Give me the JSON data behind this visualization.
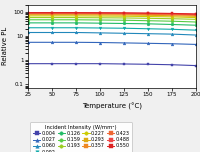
{
  "title": "",
  "xlabel": "Temperature (°C)",
  "ylabel": "Relative PL",
  "xlim": [
    25,
    200
  ],
  "ylim_log": [
    0.07,
    200
  ],
  "x_ticks": [
    25,
    50,
    75,
    100,
    125,
    150,
    175,
    200
  ],
  "temperatures": [
    25,
    50,
    75,
    100,
    125,
    150,
    175,
    200
  ],
  "legend_title": "Incident Intensity (W/mm²)",
  "series": [
    {
      "label": "0.004",
      "color": "#4444aa",
      "marker": "s",
      "y": [
        0.72,
        0.72,
        0.72,
        0.72,
        0.7,
        0.68,
        0.65,
        0.6
      ]
    },
    {
      "label": "0.027",
      "color": "#3366bb",
      "marker": "^",
      "y": [
        5.5,
        5.5,
        5.5,
        5.4,
        5.2,
        5.0,
        4.8,
        4.5
      ]
    },
    {
      "label": "0.060",
      "color": "#2288bb",
      "marker": "^",
      "y": [
        14,
        14,
        14,
        13.5,
        13,
        12.5,
        12,
        11
      ]
    },
    {
      "label": "0.092",
      "color": "#11aaaa",
      "marker": "v",
      "y": [
        22,
        22,
        22,
        21.5,
        21,
        20,
        19,
        17.5
      ]
    },
    {
      "label": "0.126",
      "color": "#22bb66",
      "marker": "o",
      "y": [
        35,
        35,
        35,
        34,
        33,
        32,
        30,
        28
      ]
    },
    {
      "label": "0.159",
      "color": "#55cc44",
      "marker": "o",
      "y": [
        47,
        47,
        47,
        46,
        45,
        43,
        41,
        38
      ]
    },
    {
      "label": "0.193",
      "color": "#99cc22",
      "marker": "o",
      "y": [
        58,
        58,
        58,
        57,
        56,
        54,
        52,
        49
      ]
    },
    {
      "label": "0.227",
      "color": "#cccc00",
      "marker": "o",
      "y": [
        68,
        68,
        68,
        67,
        66,
        64,
        62,
        58
      ]
    },
    {
      "label": "0.293",
      "color": "#ddaa11",
      "marker": "s",
      "y": [
        76,
        76,
        76,
        75,
        74,
        72,
        69,
        65
      ]
    },
    {
      "label": "0.357",
      "color": "#ee8822",
      "marker": "s",
      "y": [
        82,
        82,
        82,
        81,
        80,
        78,
        75,
        71
      ]
    },
    {
      "label": "0.423",
      "color": "#ee6633",
      "marker": "s",
      "y": [
        87,
        87,
        87,
        86,
        85,
        83,
        80,
        76
      ]
    },
    {
      "label": "0.488",
      "color": "#ee4444",
      "marker": "s",
      "y": [
        90,
        90,
        90,
        89,
        88,
        86,
        83,
        79
      ]
    },
    {
      "label": "0.550",
      "color": "#dd2222",
      "marker": "s",
      "y": [
        93,
        93,
        93,
        92,
        91,
        89,
        86,
        82
      ]
    }
  ],
  "fig_bg": "#f0f0f0"
}
